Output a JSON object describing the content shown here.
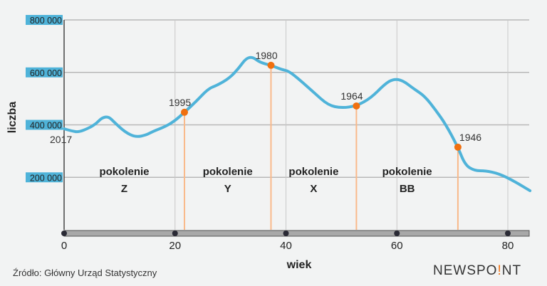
{
  "chart_data": {
    "type": "line",
    "xlabel": "wiek",
    "ylabel": "liczba",
    "xlim": [
      0,
      84
    ],
    "ylim": [
      0,
      800000
    ],
    "x_ticks": [
      0,
      20,
      40,
      60,
      80
    ],
    "x_tick_labels": [
      "0",
      "20",
      "40",
      "60",
      "80"
    ],
    "y_ticks": [
      200000,
      400000,
      600000,
      800000
    ],
    "y_tick_labels": [
      "200 000",
      "400 000",
      "600 000",
      "800 000"
    ],
    "grid": true,
    "series": [
      {
        "color": "#4fb3d9",
        "x": [
          0,
          1.3,
          2.6,
          4.5,
          5.8,
          6.8,
          8,
          9,
          11,
          12.9,
          14.8,
          16,
          18.3,
          20,
          21.7,
          23.8,
          26,
          27.6,
          29.8,
          31.5,
          32.8,
          34,
          35.3,
          37.3,
          39.2,
          40.5,
          42.4,
          45,
          47.6,
          50,
          52.7,
          55.3,
          57.9,
          59.4,
          61,
          63,
          65,
          67,
          68.8,
          71,
          72.3,
          74,
          76,
          78.4,
          81,
          84
        ],
        "y": [
          385000,
          377000,
          372000,
          388000,
          405000,
          427000,
          432000,
          411000,
          372000,
          353000,
          361000,
          375000,
          394000,
          416000,
          448000,
          489000,
          538000,
          551000,
          578000,
          616000,
          654000,
          659000,
          638000,
          627000,
          611000,
          605000,
          573000,
          524000,
          475000,
          464000,
          472000,
          502000,
          557000,
          575000,
          570000,
          538000,
          510000,
          456000,
          402000,
          315000,
          247000,
          225000,
          225000,
          214000,
          187000,
          149000
        ]
      }
    ],
    "annotations": [
      {
        "label": "2017",
        "x": 0,
        "y": 385000
      },
      {
        "label": "1995",
        "x": 21.7,
        "y": 448000,
        "marker": true
      },
      {
        "label": "1980",
        "x": 37.3,
        "y": 627000,
        "marker": true
      },
      {
        "label": "1964",
        "x": 52.7,
        "y": 472000,
        "marker": true
      },
      {
        "label": "1946",
        "x": 71,
        "y": 315000,
        "marker": true
      }
    ],
    "generations": [
      {
        "line1": "pokolenie",
        "line2": "Z",
        "from": 0,
        "to": 21.7
      },
      {
        "line1": "pokolenie",
        "line2": "Y",
        "from": 21.7,
        "to": 37.3
      },
      {
        "line1": "pokolenie",
        "line2": "X",
        "from": 37.3,
        "to": 52.7
      },
      {
        "line1": "pokolenie",
        "line2": "BB",
        "from": 52.7,
        "to": 71
      }
    ],
    "marker_color": "#f07010",
    "divider_color": "#f9b98a",
    "tick_label_bg": "#4fb3d9"
  },
  "footer": {
    "source": "Źródło: Główny Urząd Statystyczny",
    "logo_a": "NEWSPO",
    "logo_dot": "!",
    "logo_b": "NT"
  }
}
